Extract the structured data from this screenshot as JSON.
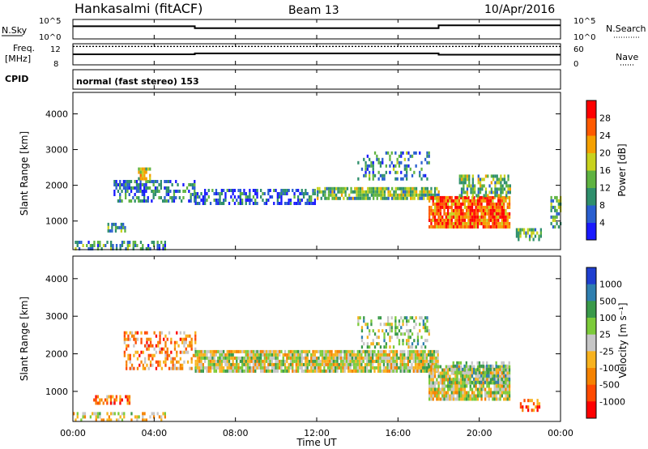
{
  "header": {
    "site": "Hankasalmi (fitACF)",
    "beam": "Beam 13",
    "date": "10/Apr/2016"
  },
  "labels": {
    "nsky": "N.Sky",
    "freq_line1": "Freq.",
    "freq_line2": "[MHz]",
    "cpid": "CPID",
    "nsearch": "N.Search",
    "nave": "Nave",
    "mode": "normal (fast stereo) 153",
    "xlabel": "Time UT"
  },
  "chart_data": [
    {
      "type": "line",
      "name": "noise-panel",
      "x_ticks": [
        "00:00",
        "04:00",
        "08:00",
        "12:00",
        "16:00",
        "20:00",
        "00:00"
      ],
      "left_ticks": [
        "10^5",
        "10^0"
      ],
      "right_ticks": [
        "10^5",
        "10^0"
      ],
      "series": [
        {
          "values": [
            [
              0,
              0.35
            ],
            [
              6,
              0.35
            ],
            [
              6,
              0.45
            ],
            [
              18,
              0.45
            ],
            [
              18,
              0.3
            ],
            [
              24,
              0.3
            ]
          ]
        }
      ]
    },
    {
      "type": "line",
      "name": "freq-nave-panel",
      "left_ticks": [
        "12",
        "8"
      ],
      "right_ticks": [
        "60",
        "0"
      ],
      "series": [
        {
          "values": [
            [
              0,
              10.4
            ],
            [
              6,
              10.4
            ],
            [
              6,
              10.6
            ],
            [
              18,
              10.6
            ],
            [
              18,
              10.3
            ],
            [
              24,
              10.3
            ]
          ]
        },
        {
          "values": [
            [
              0,
              12.2
            ],
            [
              24,
              12.2
            ]
          ],
          "dashed": true
        }
      ]
    },
    {
      "type": "heatmap",
      "name": "power",
      "xlabel": "",
      "ylabel": "Slant Range [km]",
      "yticks": [
        1000,
        2000,
        3000,
        4000
      ],
      "ylim": [
        200,
        4600
      ],
      "xlim": [
        0,
        24
      ],
      "colorbar": {
        "label": "Power [dB]",
        "ticks": [
          4,
          8,
          12,
          16,
          20,
          24,
          28
        ],
        "range": [
          0,
          32
        ],
        "colors": [
          "#1a1aff",
          "#2a5fd0",
          "#2f8f6c",
          "#5fb341",
          "#c8d21e",
          "#f5a000",
          "#ff5a00",
          "#ff0000"
        ]
      },
      "regions": [
        {
          "t0": 0.0,
          "t1": 4.5,
          "r0": 220,
          "r1": 450,
          "level": 0.3,
          "density": 0.45
        },
        {
          "t0": 2.0,
          "t1": 6.0,
          "r0": 1550,
          "r1": 2150,
          "level": 0.25,
          "density": 0.5
        },
        {
          "t0": 3.2,
          "t1": 3.8,
          "r0": 2200,
          "r1": 2500,
          "level": 0.55,
          "density": 0.7
        },
        {
          "t0": 6.0,
          "t1": 12.0,
          "r0": 1450,
          "r1": 1900,
          "level": 0.2,
          "density": 0.55
        },
        {
          "t0": 12.0,
          "t1": 18.0,
          "r0": 1600,
          "r1": 1950,
          "level": 0.45,
          "density": 0.85
        },
        {
          "t0": 14.0,
          "t1": 17.5,
          "r0": 2150,
          "r1": 2950,
          "level": 0.3,
          "density": 0.3
        },
        {
          "t0": 17.5,
          "t1": 21.5,
          "r0": 800,
          "r1": 1700,
          "level": 0.8,
          "density": 0.9
        },
        {
          "t0": 19.0,
          "t1": 21.5,
          "r0": 1700,
          "r1": 2300,
          "level": 0.45,
          "density": 0.55
        },
        {
          "t0": 1.7,
          "t1": 2.6,
          "r0": 750,
          "r1": 950,
          "level": 0.35,
          "density": 0.7
        },
        {
          "t0": 21.8,
          "t1": 23.0,
          "r0": 500,
          "r1": 800,
          "level": 0.4,
          "density": 0.6
        },
        {
          "t0": 23.5,
          "t1": 24.0,
          "r0": 800,
          "r1": 1700,
          "level": 0.4,
          "density": 0.6
        }
      ]
    },
    {
      "type": "heatmap",
      "name": "velocity",
      "xlabel": "Time UT",
      "ylabel": "Slant Range [km]",
      "yticks": [
        1000,
        2000,
        3000,
        4000
      ],
      "ylim": [
        200,
        4600
      ],
      "xlim": [
        0,
        24
      ],
      "colorbar": {
        "label": "Velocity [m s⁻¹]",
        "ticks": [
          "1000",
          "500",
          "100",
          "25",
          "-25",
          "-100",
          "-500",
          "-1000"
        ],
        "colors": [
          "#1f3fd0",
          "#2f7fb0",
          "#3a9a4a",
          "#7ccb3a",
          "#c6c6c6",
          "#f7b21e",
          "#f58200",
          "#ff4a00",
          "#ff0000"
        ]
      },
      "regions": [
        {
          "t0": 0.0,
          "t1": 4.5,
          "r0": 220,
          "r1": 450,
          "level": 0.55,
          "density": 0.35
        },
        {
          "t0": 2.5,
          "t1": 6.0,
          "r0": 1600,
          "r1": 2600,
          "level": 0.7,
          "density": 0.45
        },
        {
          "t0": 6.0,
          "t1": 18.0,
          "r0": 1500,
          "r1": 2100,
          "level": 0.5,
          "density": 0.9
        },
        {
          "t0": 14.0,
          "t1": 17.5,
          "r0": 2200,
          "r1": 3000,
          "level": 0.4,
          "density": 0.35
        },
        {
          "t0": 17.5,
          "t1": 21.5,
          "r0": 800,
          "r1": 1700,
          "level": 0.5,
          "density": 0.9
        },
        {
          "t0": 18.5,
          "t1": 21.5,
          "r0": 1200,
          "r1": 1800,
          "level": 0.35,
          "density": 0.5
        },
        {
          "t0": 1.0,
          "t1": 2.8,
          "r0": 700,
          "r1": 900,
          "level": 0.75,
          "density": 0.55
        },
        {
          "t0": 22.0,
          "t1": 23.0,
          "r0": 500,
          "r1": 800,
          "level": 0.75,
          "density": 0.55
        }
      ]
    }
  ]
}
